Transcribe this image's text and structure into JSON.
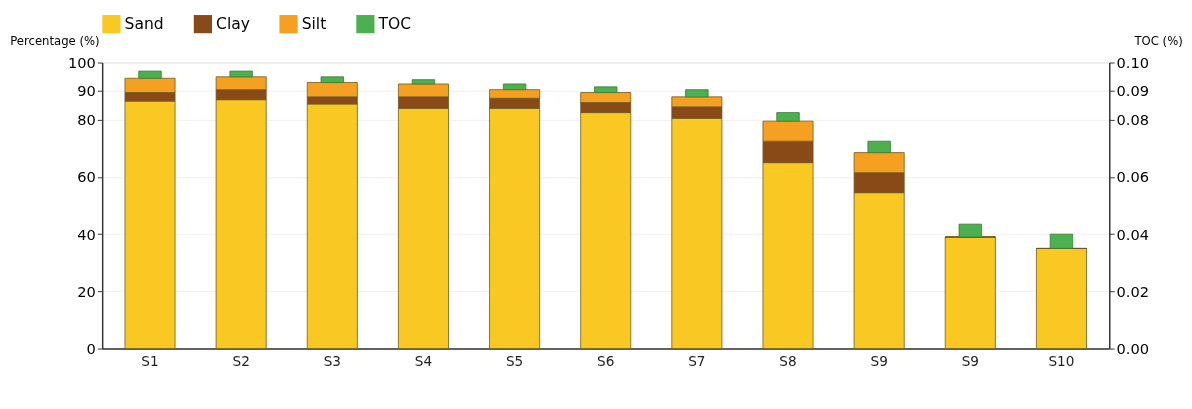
{
  "chart_data": {
    "type": "bar",
    "stacked": true,
    "categories": [
      "S1",
      "S2",
      "S3",
      "S4",
      "S5",
      "S6",
      "S7",
      "S8",
      "S9",
      "S9",
      "S10"
    ],
    "series": [
      {
        "name": "Sand",
        "color": "#f9c823",
        "values": [
          86.5,
          87,
          85.5,
          84,
          84,
          82.5,
          80.5,
          65,
          54.5,
          39,
          35
        ]
      },
      {
        "name": "Clay",
        "color": "#8a4a17",
        "values": [
          3,
          3.5,
          2.5,
          4,
          3.5,
          3.5,
          4,
          7.5,
          7,
          0,
          0
        ]
      },
      {
        "name": "Silt",
        "color": "#f5a020",
        "values": [
          5,
          4.5,
          5,
          4.5,
          3,
          3.5,
          3.5,
          7,
          7,
          0,
          0
        ]
      },
      {
        "name": "TOC",
        "color": "#4caf50",
        "values": [
          2.5,
          2,
          2,
          1.5,
          2,
          2,
          2.5,
          3,
          4,
          4.5,
          5
        ]
      }
    ],
    "ylabel": "Percentage (%)",
    "y2label": "TOC (%)",
    "ylim": [
      0,
      100
    ],
    "yticks": [
      0,
      20,
      40,
      60,
      80,
      90,
      100
    ],
    "y2lim": [
      0,
      0.1
    ],
    "y2ticks": [
      {
        "value": 0,
        "label": "0.00"
      },
      {
        "value": 0.02,
        "label": "0.02"
      },
      {
        "value": 0.04,
        "label": "0.04"
      },
      {
        "value": 0.06,
        "label": "0.06"
      },
      {
        "value": 0.08,
        "label": "0.08"
      },
      {
        "value": 0.09,
        "label": "0.09"
      },
      {
        "value": 0.1,
        "label": "0.10"
      }
    ],
    "grid": "y",
    "legend": "top"
  }
}
